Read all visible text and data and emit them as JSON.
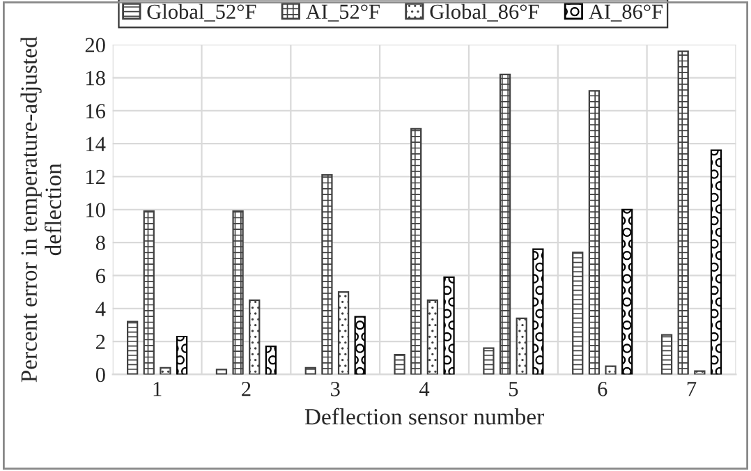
{
  "chart_data": {
    "type": "bar",
    "xlabel": "Deflection sensor number",
    "ylabel": "Percent error in temperature-adjusted deflection",
    "categories": [
      "1",
      "2",
      "3",
      "4",
      "5",
      "6",
      "7"
    ],
    "series": [
      {
        "name": "Global_52°F",
        "color": "#404040",
        "values": [
          3.2,
          0.3,
          0.4,
          1.2,
          1.6,
          7.4,
          2.4
        ]
      },
      {
        "name": "AI_52°F",
        "color": "#404040",
        "values": [
          9.9,
          9.9,
          12.1,
          14.9,
          18.2,
          17.2,
          19.6
        ]
      },
      {
        "name": "Global_86°F",
        "color": "#404040",
        "values": [
          0.4,
          4.5,
          5.0,
          4.5,
          3.4,
          0.5,
          0.2
        ]
      },
      {
        "name": "AI_86°F",
        "color": "#000000",
        "values": [
          2.3,
          1.7,
          3.5,
          5.9,
          7.6,
          10.0,
          13.6
        ]
      }
    ],
    "ylim": [
      0,
      20
    ],
    "yticks": [
      0,
      2,
      4,
      6,
      8,
      10,
      12,
      14,
      16,
      18,
      20
    ],
    "grid": true,
    "legend": "top"
  }
}
